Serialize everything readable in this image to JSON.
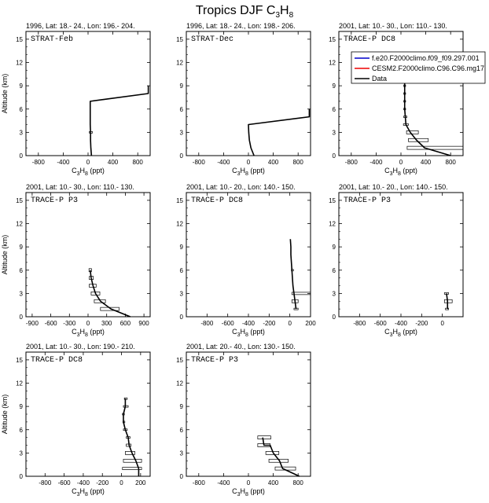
{
  "figure": {
    "title": "Tropics DJF C",
    "title_sub1": "3",
    "title_mid": "H",
    "title_sub2": "8"
  },
  "axes_common": {
    "ylabel": "Altitude (km)",
    "xlabel_main": "C",
    "xlabel_sub1": "3",
    "xlabel_mid": "H",
    "xlabel_sub2": "8",
    "xlabel_unit": " (ppt)",
    "yticks": [
      0,
      3,
      6,
      9,
      12,
      15
    ]
  },
  "legend": {
    "entries": [
      {
        "label": "f.e20.F2000climo.f09_f09.297.001",
        "color": "#0000cc"
      },
      {
        "label": "CESM2.F2000climo.C96.C96.mg17",
        "color": "#ee0000"
      },
      {
        "label": "Data",
        "color": "#000000"
      }
    ]
  },
  "chart_data": [
    {
      "type": "line",
      "header": "1996, Lat: 18.- 24., Lon: 196.- 204.",
      "campaign": "STRAT-Feb",
      "xlim": [
        -1000,
        1000
      ],
      "ylim": [
        0,
        16
      ],
      "xticks": [
        -800,
        -400,
        0,
        400,
        800
      ],
      "show_ylabel": true,
      "data": {
        "x": [
          55,
          45,
          40,
          40,
          35,
          35,
          970,
          970
        ],
        "y": [
          0,
          1,
          2,
          3,
          4,
          7,
          8,
          9
        ]
      },
      "error_boxes": [
        [
          20,
          70,
          2.9,
          3.1
        ]
      ]
    },
    {
      "type": "line",
      "header": "1996, Lat: 18.- 24., Lon: 198.- 206.",
      "campaign": "STRAT-Dec",
      "xlim": [
        -1000,
        1000
      ],
      "ylim": [
        0,
        16
      ],
      "xticks": [
        -800,
        -400,
        0,
        400,
        800
      ],
      "show_ylabel": false,
      "data": {
        "x": [
          90,
          40,
          15,
          5,
          0,
          0,
          980,
          980
        ],
        "y": [
          0,
          1,
          2,
          3,
          4,
          4,
          5,
          6
        ]
      },
      "error_boxes": []
    },
    {
      "type": "line",
      "header": "2001, Lat: 10.- 30., Lon: 110.- 130.",
      "campaign": "TRACE-P DC8",
      "xlim": [
        -1000,
        1000
      ],
      "ylim": [
        0,
        16
      ],
      "xticks": [
        -800,
        -400,
        0,
        400,
        800
      ],
      "show_ylabel": false,
      "data": {
        "x": [
          800,
          380,
          250,
          150,
          80,
          70,
          60,
          60,
          60,
          60,
          60
        ],
        "y": [
          0,
          1,
          2,
          3,
          4,
          5,
          6,
          7,
          8,
          9,
          10
        ]
      },
      "error_boxes": [
        [
          100,
          1000,
          0.8,
          1.2
        ],
        [
          120,
          440,
          1.8,
          2.2
        ],
        [
          90,
          280,
          2.8,
          3.2
        ],
        [
          40,
          120,
          3.9,
          4.1
        ],
        [
          45,
          95,
          4.9,
          5.1
        ],
        [
          45,
          75,
          5.9,
          6.1
        ],
        [
          45,
          75,
          6.9,
          7.1
        ],
        [
          45,
          75,
          7.9,
          8.1
        ],
        [
          45,
          75,
          8.9,
          9.1
        ],
        [
          45,
          75,
          9.9,
          10.1
        ]
      ]
    },
    {
      "type": "line",
      "header": "2001, Lat: 10.- 30., Lon: 110.- 130.",
      "campaign": "TRACE-P P3",
      "xlim": [
        -1000,
        1000
      ],
      "ylim": [
        0,
        16
      ],
      "xticks": [
        -900,
        -600,
        -300,
        0,
        300,
        600,
        900
      ],
      "show_ylabel": true,
      "data": {
        "x": [
          680,
          370,
          200,
          120,
          80,
          50,
          35
        ],
        "y": [
          0,
          1,
          2,
          3,
          4,
          5,
          6
        ]
      },
      "error_boxes": [
        [
          200,
          500,
          0.8,
          1.2
        ],
        [
          100,
          280,
          1.8,
          2.2
        ],
        [
          50,
          190,
          2.8,
          3.2
        ],
        [
          20,
          130,
          3.8,
          4.2
        ],
        [
          20,
          85,
          4.8,
          5.2
        ],
        [
          15,
          55,
          5.8,
          6.2
        ]
      ]
    },
    {
      "type": "line",
      "header": "2001, Lat: 10.- 20., Lon: 140.- 150.",
      "campaign": "TRACE-P DC8",
      "xlim": [
        -1000,
        200
      ],
      "ylim": [
        0,
        16
      ],
      "xticks": [
        -800,
        -600,
        -400,
        -200,
        0,
        200
      ],
      "show_ylabel": false,
      "data": {
        "x": [
          60,
          50,
          40,
          30,
          25,
          20,
          15,
          10,
          10,
          5
        ],
        "y": [
          1,
          2,
          3,
          4,
          5,
          6,
          7,
          8,
          9,
          10
        ]
      },
      "error_boxes": [
        [
          40,
          80,
          0.9,
          1.1
        ],
        [
          20,
          80,
          1.8,
          2.2
        ],
        [
          20,
          300,
          2.85,
          3.15
        ],
        [
          15,
          35,
          5.9,
          6.1
        ]
      ]
    },
    {
      "type": "line",
      "header": "2001, Lat: 10.- 20., Lon: 140.- 150.",
      "campaign": "TRACE-P P3",
      "xlim": [
        -1000,
        200
      ],
      "ylim": [
        0,
        16
      ],
      "xticks": [
        -800,
        -600,
        -400,
        -200,
        0
      ],
      "show_ylabel": false,
      "data": {
        "x": [
          50,
          50,
          40
        ],
        "y": [
          1,
          2,
          3
        ]
      },
      "error_boxes": [
        [
          30,
          60,
          0.9,
          1.1
        ],
        [
          20,
          95,
          1.8,
          2.2
        ],
        [
          20,
          60,
          2.9,
          3.1
        ]
      ]
    },
    {
      "type": "line",
      "header": "2001, Lat: 10.- 30., Lon: 190.- 210.",
      "campaign": "TRACE-P DC8",
      "xlim": [
        -1000,
        300
      ],
      "ylim": [
        0,
        16
      ],
      "xticks": [
        -800,
        -600,
        -400,
        -200,
        0,
        200
      ],
      "show_ylabel": true,
      "data": {
        "x": [
          180,
          180,
          150,
          110,
          80,
          70,
          40,
          20,
          20,
          40,
          40
        ],
        "y": [
          0,
          1,
          2,
          3,
          4,
          5,
          6,
          7,
          8,
          9,
          10
        ]
      },
      "error_boxes": [
        [
          10,
          210,
          0.85,
          1.15
        ],
        [
          20,
          210,
          1.8,
          2.2
        ],
        [
          40,
          140,
          2.8,
          3.2
        ],
        [
          50,
          100,
          3.85,
          4.15
        ],
        [
          50,
          90,
          4.9,
          5.1
        ],
        [
          20,
          60,
          5.9,
          6.1
        ],
        [
          15,
          35,
          6.9,
          7.1
        ],
        [
          10,
          30,
          7.9,
          8.1
        ],
        [
          20,
          70,
          8.9,
          9.1
        ],
        [
          30,
          60,
          9.9,
          10.1
        ]
      ]
    },
    {
      "type": "line",
      "header": "2001, Lat: 20.- 40., Lon: 130.- 150.",
      "campaign": "TRACE-P P3",
      "xlim": [
        -1000,
        1000
      ],
      "ylim": [
        0,
        16
      ],
      "xticks": [
        -800,
        -400,
        0,
        400,
        800
      ],
      "show_ylabel": false,
      "data": {
        "x": [
          820,
          550,
          500,
          400,
          350,
          250,
          230
        ],
        "y": [
          0,
          1,
          2,
          3,
          4,
          4,
          5
        ]
      },
      "error_boxes": [
        [
          430,
          760,
          0.8,
          1.2
        ],
        [
          330,
          640,
          1.8,
          2.2
        ],
        [
          280,
          490,
          2.8,
          3.2
        ],
        [
          150,
          350,
          3.8,
          4.2
        ],
        [
          150,
          360,
          4.8,
          5.2
        ]
      ]
    }
  ]
}
